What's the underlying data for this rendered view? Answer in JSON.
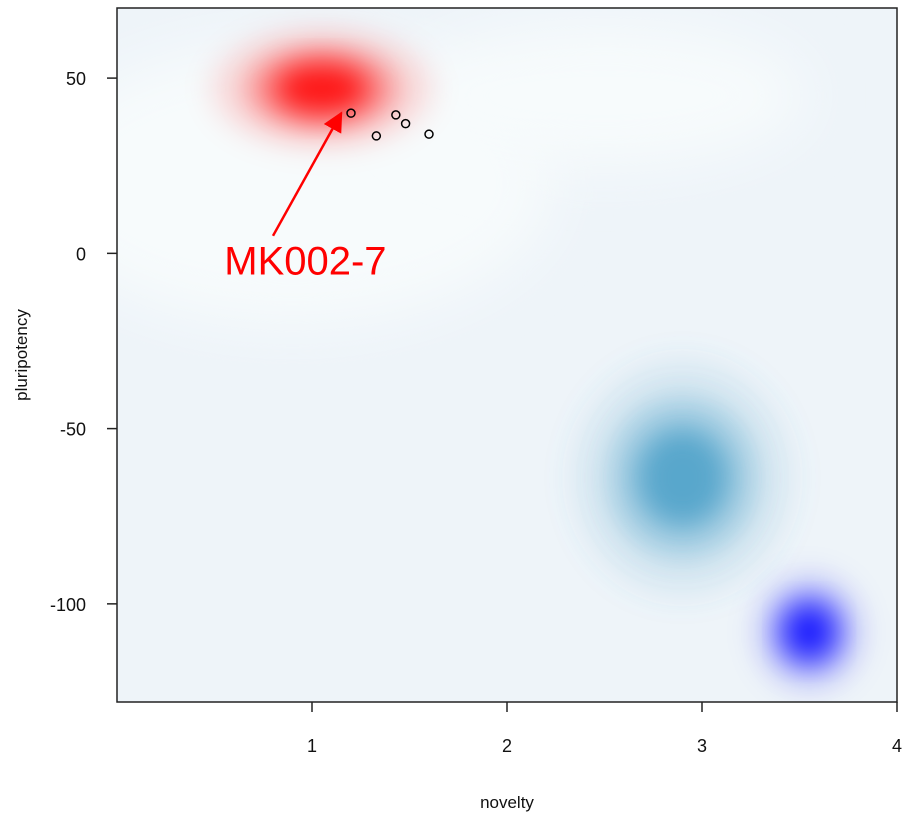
{
  "chart_data": {
    "type": "scatter",
    "title": "",
    "xlabel": "novelty",
    "ylabel": "pluripotency",
    "xlim": [
      0,
      4
    ],
    "ylim": [
      -128,
      70
    ],
    "x_ticks": [
      {
        "value": 1,
        "label": "1"
      },
      {
        "value": 2,
        "label": "2"
      },
      {
        "value": 3,
        "label": "3"
      },
      {
        "value": 4,
        "label": "4"
      }
    ],
    "y_ticks": [
      {
        "value": 50,
        "label": "50"
      },
      {
        "value": 0,
        "label": "0"
      },
      {
        "value": -50,
        "label": "-50"
      },
      {
        "value": -100,
        "label": "-100"
      }
    ],
    "grid": false,
    "background_color": "#eef4f9",
    "density_regions": [
      {
        "color": "#ff0000",
        "center": [
          1.05,
          47
        ],
        "spread": [
          0.3,
          9
        ]
      },
      {
        "color": "#4aa0c8",
        "center": [
          2.9,
          -64
        ],
        "spread": [
          0.3,
          18
        ]
      },
      {
        "color": "#0000ff",
        "center": [
          3.55,
          -108
        ],
        "spread": [
          0.15,
          9
        ]
      }
    ],
    "points": [
      {
        "x": 1.2,
        "y": 40
      },
      {
        "x": 1.33,
        "y": 33.5
      },
      {
        "x": 1.43,
        "y": 39.5
      },
      {
        "x": 1.48,
        "y": 37
      },
      {
        "x": 1.6,
        "y": 34
      }
    ],
    "annotation": {
      "text": "MK002-7",
      "color": "#ff0000",
      "text_at": [
        0.55,
        -6
      ],
      "arrow_from": [
        0.8,
        5
      ],
      "arrow_to": [
        1.15,
        40
      ]
    }
  }
}
